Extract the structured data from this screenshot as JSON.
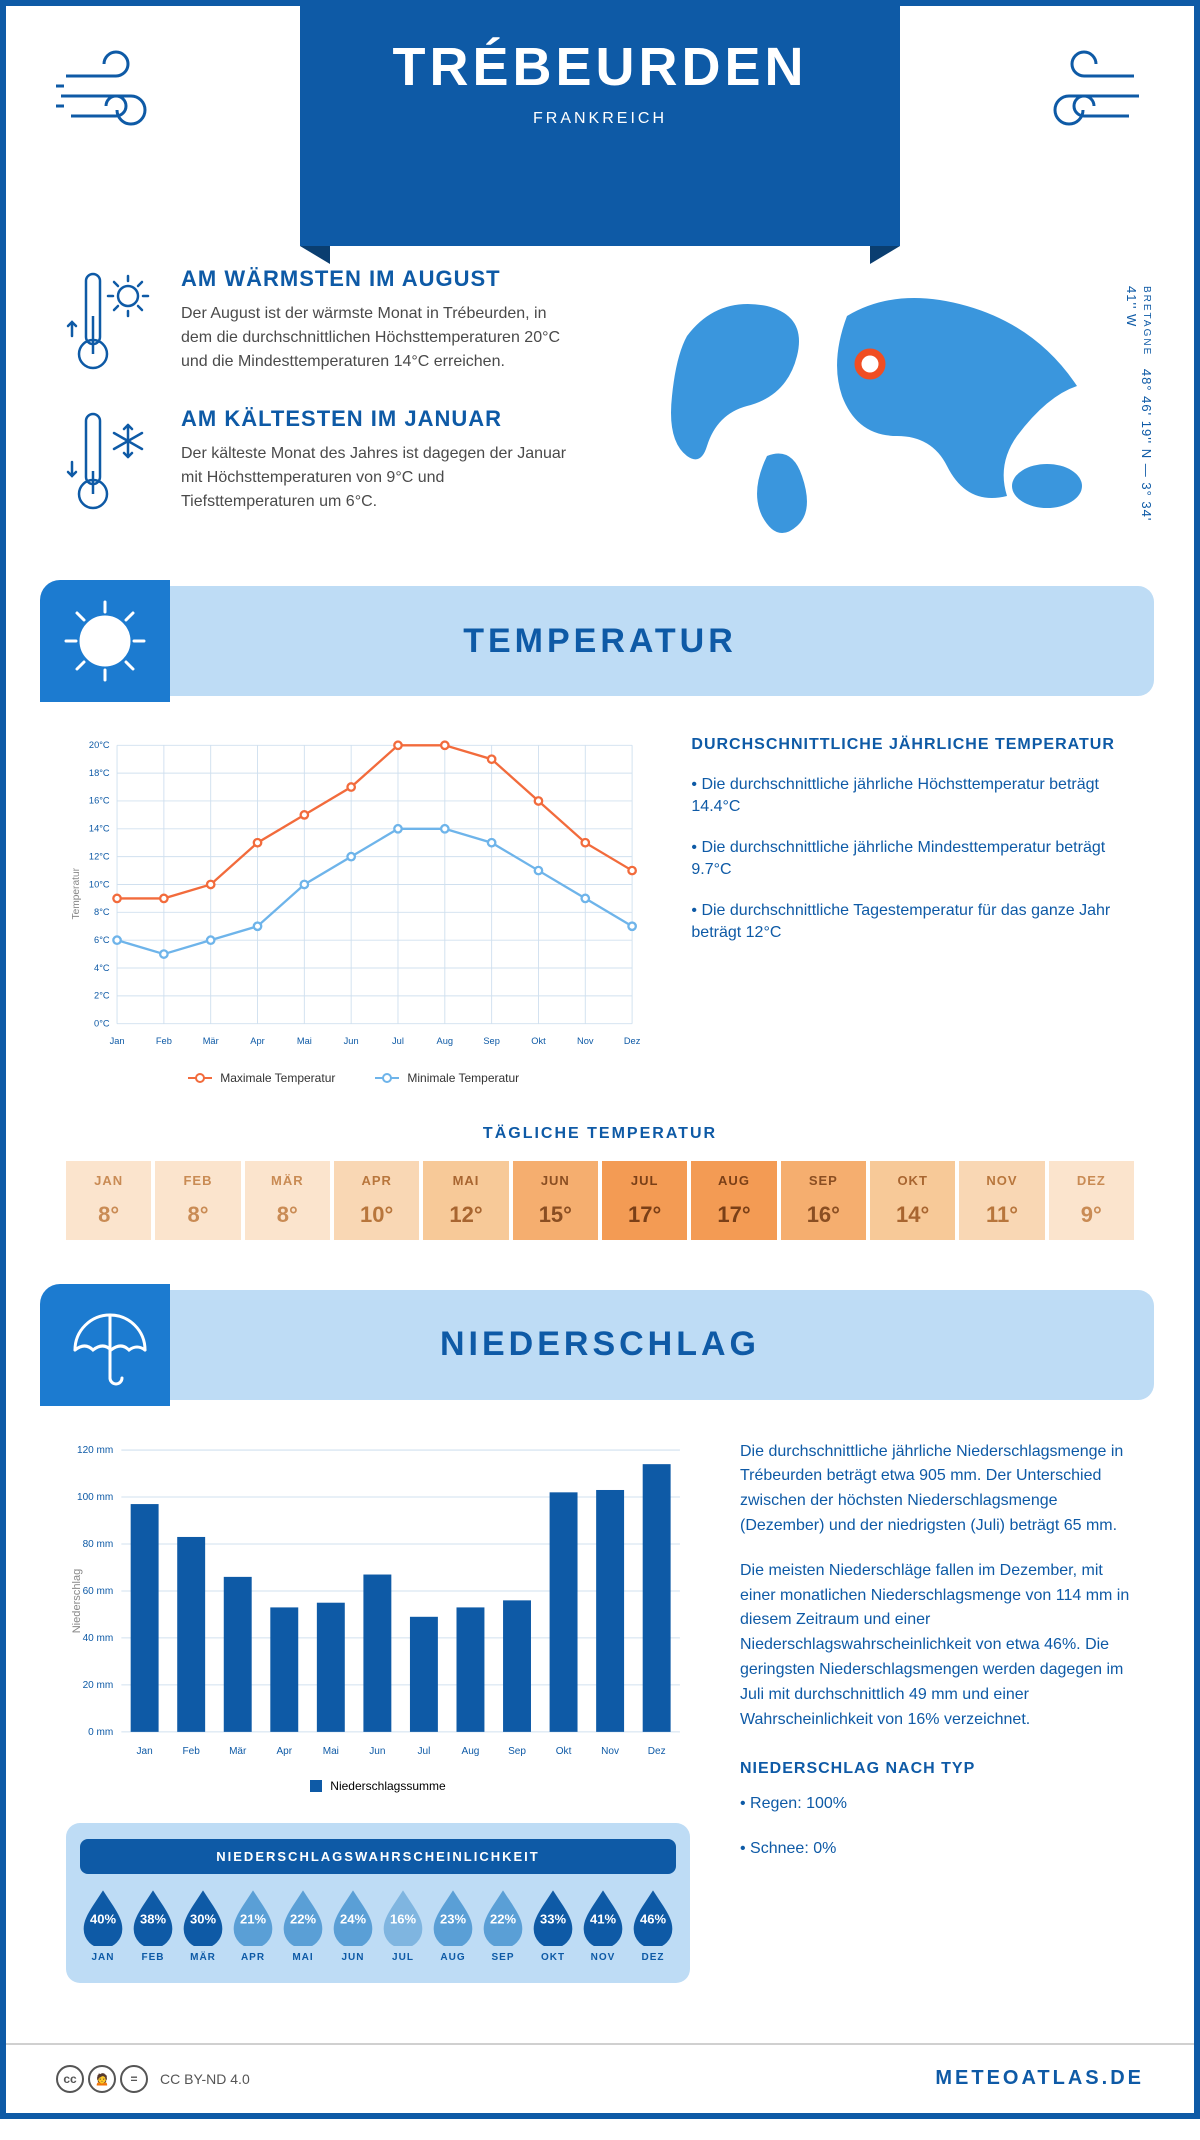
{
  "colors": {
    "primary": "#0e5aa6",
    "light_blue": "#bedcf5",
    "mid_blue": "#1c7bd0",
    "max_line": "#f26b3c",
    "min_line": "#6eb4ea",
    "grid": "#d0e0ef",
    "text_body": "#4a4a4a"
  },
  "header": {
    "title": "TRÉBEURDEN",
    "subtitle": "FRANKREICH"
  },
  "location": {
    "region": "BRETAGNE",
    "coords": "48° 46' 19'' N — 3° 34' 41'' W"
  },
  "intro": {
    "warm_title": "AM WÄRMSTEN IM AUGUST",
    "warm_text": "Der August ist der wärmste Monat in Trébeurden, in dem die durchschnittlichen Höchsttemperaturen 20°C und die Mindesttemperaturen 14°C erreichen.",
    "cold_title": "AM KÄLTESTEN IM JANUAR",
    "cold_text": "Der kälteste Monat des Jahres ist dagegen der Januar mit Höchsttemperaturen von 9°C und Tiefsttemperaturen um 6°C."
  },
  "months": [
    "Jan",
    "Feb",
    "Mär",
    "Apr",
    "Mai",
    "Jun",
    "Jul",
    "Aug",
    "Sep",
    "Okt",
    "Nov",
    "Dez"
  ],
  "months_upper": [
    "JAN",
    "FEB",
    "MÄR",
    "APR",
    "MAI",
    "JUN",
    "JUL",
    "AUG",
    "SEP",
    "OKT",
    "NOV",
    "DEZ"
  ],
  "temp_section": {
    "heading": "TEMPERATUR",
    "side_title": "DURCHSCHNITTLICHE JÄHRLICHE TEMPERATUR",
    "bullets": [
      "• Die durchschnittliche jährliche Höchsttemperatur beträgt 14.4°C",
      "• Die durchschnittliche jährliche Mindesttemperatur beträgt 9.7°C",
      "• Die durchschnittliche Tagestemperatur für das ganze Jahr beträgt 12°C"
    ],
    "chart": {
      "y_title": "Temperatur",
      "ylim": [
        0,
        20
      ],
      "ytick_step": 2,
      "max_series": [
        9,
        9,
        10,
        13,
        15,
        17,
        20,
        20,
        19,
        16,
        13,
        11
      ],
      "min_series": [
        6,
        5,
        6,
        7,
        10,
        12,
        14,
        14,
        13,
        11,
        9,
        7
      ],
      "legend_max": "Maximale Temperatur",
      "legend_min": "Minimale Temperatur"
    },
    "daily_title": "TÄGLICHE TEMPERATUR",
    "daily_values": [
      8,
      8,
      8,
      10,
      12,
      15,
      17,
      17,
      16,
      14,
      11,
      9
    ],
    "daily_colors": [
      "#fbe4cd",
      "#fbe4cd",
      "#fbe4cd",
      "#f9d7b4",
      "#f7c998",
      "#f5ae6f",
      "#f39b54",
      "#f39b54",
      "#f5ae6f",
      "#f7c998",
      "#f9d7b4",
      "#fbe4cd"
    ],
    "daily_text_colors": [
      "#c98b54",
      "#c98b54",
      "#c98b54",
      "#b8763c",
      "#a86530",
      "#8a4e22",
      "#7a3f17",
      "#7a3f17",
      "#8a4e22",
      "#a86530",
      "#b8763c",
      "#c98b54"
    ]
  },
  "precip_section": {
    "heading": "NIEDERSCHLAG",
    "chart": {
      "y_title": "Niederschlag",
      "ylim": [
        0,
        120
      ],
      "ytick_step": 20,
      "values": [
        97,
        83,
        66,
        53,
        55,
        67,
        49,
        53,
        56,
        102,
        103,
        114
      ],
      "legend": "Niederschlagssumme"
    },
    "text1": "Die durchschnittliche jährliche Niederschlagsmenge in Trébeurden beträgt etwa 905 mm. Der Unterschied zwischen der höchsten Niederschlagsmenge (Dezember) und der niedrigsten (Juli) beträgt 65 mm.",
    "text2": "Die meisten Niederschläge fallen im Dezember, mit einer monatlichen Niederschlagsmenge von 114 mm in diesem Zeitraum und einer Niederschlagswahrscheinlichkeit von etwa 46%. Die geringsten Niederschlagsmengen werden dagegen im Juli mit durchschnittlich 49 mm und einer Wahrscheinlichkeit von 16% verzeichnet.",
    "type_title": "NIEDERSCHLAG NACH TYP",
    "type_bullets": [
      "• Regen: 100%",
      "• Schnee: 0%"
    ],
    "prob_title": "NIEDERSCHLAGSWAHRSCHEINLICHKEIT",
    "probs": [
      40,
      38,
      30,
      21,
      22,
      24,
      16,
      23,
      22,
      33,
      41,
      46
    ],
    "prob_colors": [
      "#0e5aa6",
      "#0e5aa6",
      "#0e5aa6",
      "#5a9fd6",
      "#5a9fd6",
      "#5a9fd6",
      "#7fb5e0",
      "#5a9fd6",
      "#5a9fd6",
      "#0e5aa6",
      "#0e5aa6",
      "#0e5aa6"
    ]
  },
  "footer": {
    "license": "CC BY-ND 4.0",
    "brand": "METEOATLAS.DE"
  }
}
